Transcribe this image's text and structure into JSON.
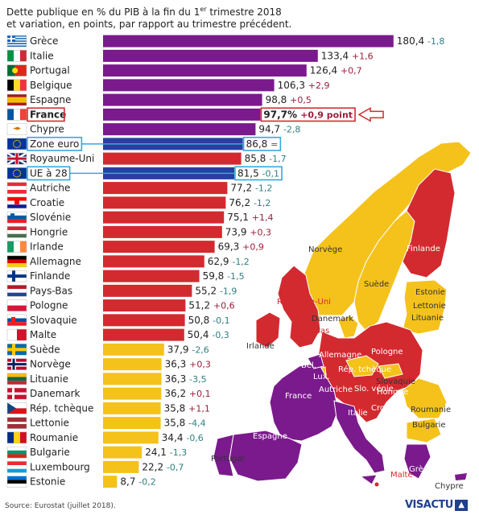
{
  "header": {
    "title_line1_pre": "Dette publique en % du PIB à la fin du 1",
    "title_line1_sup": "er",
    "title_line1_post": " trimestre 2018",
    "title_line2": "et variation, en points, par rapport au trimestre précédent."
  },
  "source": "Source: Eurostat (juillet 2018).",
  "logo": "VISACTU",
  "colors": {
    "purple": "#7b1a8c",
    "red": "#d32a2f",
    "yellow": "#f4c21b",
    "blue": "#2b3ea2",
    "pos_change": "#9b1d3b",
    "neg_change": "#2f7f83",
    "france_highlight": "#d32a2f",
    "euro_highlight": "#33a9dd"
  },
  "chart_data": {
    "type": "bar",
    "orientation": "horizontal",
    "title": "Dette publique en % du PIB à la fin du 1er trimestre 2018 et variation, en points, par rapport au trimestre précédent.",
    "categories": [
      "Grèce",
      "Italie",
      "Portugal",
      "Belgique",
      "Espagne",
      "France",
      "Chypre",
      "Zone euro",
      "Royaume-Uni",
      "UE à 28",
      "Autriche",
      "Croatie",
      "Slovénie",
      "Hongrie",
      "Irlande",
      "Allemagne",
      "Finlande",
      "Pays-Bas",
      "Pologne",
      "Slovaquie",
      "Malte",
      "Suède",
      "Norvège",
      "Lituanie",
      "Danemark",
      "Rép. tchèque",
      "Lettonie",
      "Roumanie",
      "Bulgarie",
      "Luxembourg",
      "Estonie"
    ],
    "values": [
      180.4,
      133.4,
      126.4,
      106.3,
      98.8,
      97.7,
      94.7,
      86.8,
      85.8,
      81.5,
      77.2,
      76.2,
      75.1,
      73.9,
      69.3,
      62.9,
      59.8,
      55.2,
      51.2,
      50.8,
      50.4,
      37.9,
      36.3,
      36.3,
      36.2,
      35.8,
      35.8,
      34.4,
      24.1,
      22.2,
      8.7
    ],
    "value_labels": [
      "180,4",
      "133,4",
      "126,4",
      "106,3",
      "98,8",
      "97,7%",
      "94,7",
      "86,8",
      "85,8",
      "81,5",
      "77,2",
      "76,2",
      "75,1",
      "73,9",
      "69,3",
      "62,9",
      "59,8",
      "55,2",
      "51,2",
      "50,8",
      "50,4",
      "37,9",
      "36,3",
      "36,3",
      "36,2",
      "35,8",
      "35,8",
      "34,4",
      "24,1",
      "22,2",
      "8,7"
    ],
    "changes": [
      "-1,8",
      "+1,6",
      "+0,7",
      "+2,9",
      "+0,5",
      "+0,9 point",
      "-2,8",
      "=",
      "-1,7",
      "-0,1",
      "-1,2",
      "-1,2",
      "+1,4",
      "+0,3",
      "+0,9",
      "-1,2",
      "-1,5",
      "-1,9",
      "+0,6",
      "-0,1",
      "-0,3",
      "-2,6",
      "+0,3",
      "-3,5",
      "+0,1",
      "+1,1",
      "-4,4",
      "-0,6",
      "-1,3",
      "-0,7",
      "-0,2"
    ],
    "color_groups": [
      "purple",
      "purple",
      "purple",
      "purple",
      "purple",
      "purple",
      "purple",
      "blue",
      "red",
      "blue",
      "red",
      "red",
      "red",
      "red",
      "red",
      "red",
      "red",
      "red",
      "red",
      "red",
      "red",
      "yellow",
      "yellow",
      "yellow",
      "yellow",
      "yellow",
      "yellow",
      "yellow",
      "yellow",
      "yellow",
      "yellow"
    ],
    "flags": [
      "gr",
      "it",
      "pt",
      "be",
      "es",
      "fr",
      "cy",
      "eu",
      "uk",
      "eu",
      "at",
      "hr",
      "si",
      "hu",
      "ie",
      "de",
      "fi",
      "nl",
      "pl",
      "sk",
      "mt",
      "se",
      "no",
      "lt",
      "dk",
      "cz",
      "lv",
      "ro",
      "bg",
      "lu",
      "ee"
    ],
    "highlighted": {
      "France": "france",
      "Zone euro": "euro",
      "UE à 28": "euro"
    },
    "xlim": [
      0,
      185
    ],
    "grid": false,
    "legend": "none"
  },
  "map_labels": [
    "Norvège",
    "Suède",
    "Finlande",
    "Estonie",
    "Lettonie",
    "Lituanie",
    "Danemark",
    "Royaume-Uni",
    "Irlande",
    "Pays-Bas",
    "Bel.",
    "Lux.",
    "Allemagne",
    "Pologne",
    "Rép. tchèque",
    "Slovaquie",
    "Autriche",
    "Slo. vénie",
    "Hongrie",
    "Croatie",
    "Roumanie",
    "Bulgarie",
    "France",
    "Italie",
    "Espagne",
    "Portugal",
    "Malte",
    "Grèce",
    "Chypre"
  ]
}
